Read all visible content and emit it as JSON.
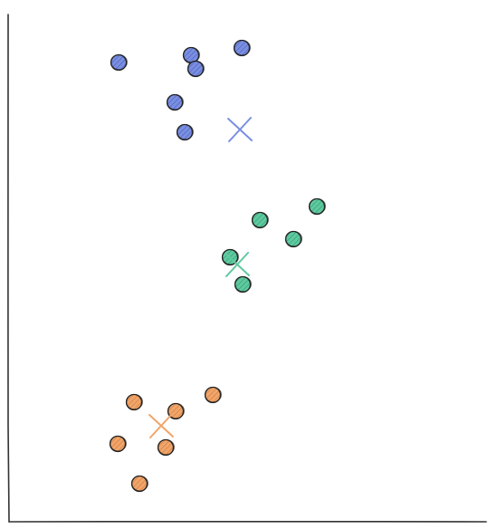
{
  "diagram": {
    "type": "kmeans-clusters",
    "style": "hand-drawn",
    "axes": {
      "x_axis": "present",
      "y_axis": "present",
      "labels": "none",
      "ticks": "none"
    },
    "colors": {
      "blue": "#7a8fe0",
      "green": "#5fc9a0",
      "orange": "#f0a56a",
      "outline": "#222222",
      "axis": "#333333"
    },
    "clusters": [
      {
        "id": "blue-cluster",
        "color": "blue",
        "point_count": 6,
        "centroid_marker": "x",
        "position": "top"
      },
      {
        "id": "green-cluster",
        "color": "green",
        "point_count": 5,
        "centroid_marker": "x",
        "position": "middle"
      },
      {
        "id": "orange-cluster",
        "color": "orange",
        "point_count": 6,
        "centroid_marker": "x",
        "position": "bottom"
      }
    ]
  }
}
